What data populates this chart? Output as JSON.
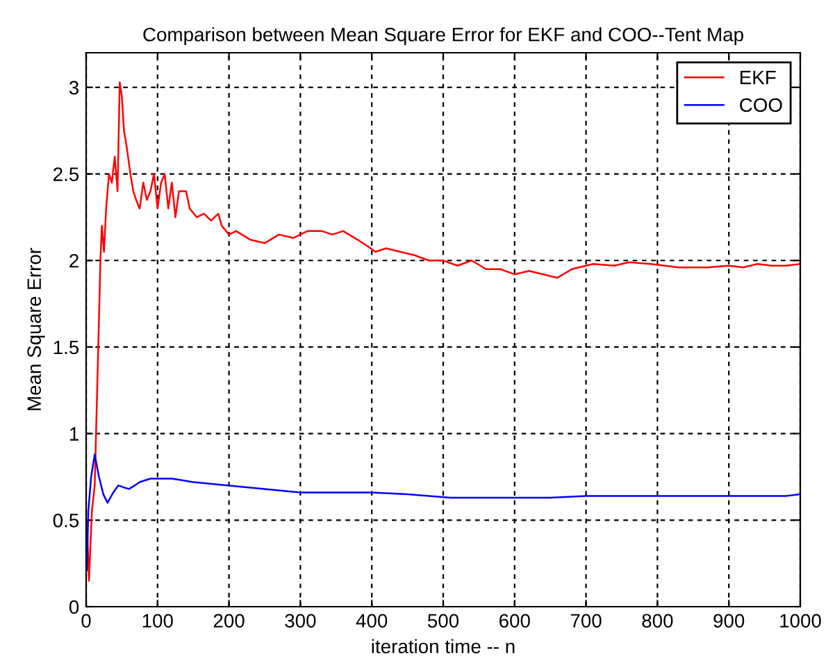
{
  "chart_data": {
    "type": "line",
    "title": "Comparison between Mean Square Error for EKF and COO--Tent Map",
    "xlabel": "iteration time -- n",
    "ylabel": "Mean Square Error",
    "xlim": [
      0,
      1000
    ],
    "ylim": [
      0,
      3.2
    ],
    "xticks": [
      0,
      100,
      200,
      300,
      400,
      500,
      600,
      700,
      800,
      900,
      1000
    ],
    "yticks": [
      0,
      0.5,
      1,
      1.5,
      2,
      2.5,
      3
    ],
    "grid": true,
    "legend": "top right",
    "line_style": "solid",
    "marker": "none",
    "series": [
      {
        "name": "EKF",
        "color": "#ff0000",
        "x": [
          1,
          4,
          8,
          12,
          17,
          20,
          22,
          25,
          28,
          32,
          36,
          40,
          44,
          47,
          50,
          53,
          57,
          62,
          66,
          70,
          75,
          80,
          85,
          90,
          95,
          100,
          105,
          110,
          115,
          120,
          125,
          130,
          140,
          145,
          155,
          165,
          175,
          185,
          190,
          200,
          210,
          230,
          250,
          270,
          290,
          310,
          330,
          345,
          360,
          380,
          395,
          405,
          420,
          440,
          460,
          480,
          500,
          520,
          540,
          560,
          580,
          600,
          620,
          640,
          660,
          680,
          700,
          710,
          740,
          760,
          790,
          810,
          830,
          850,
          870,
          900,
          920,
          940,
          960,
          980,
          1000
        ],
        "values": [
          0.5,
          0.15,
          0.55,
          0.7,
          1.5,
          2.0,
          2.2,
          2.05,
          2.3,
          2.5,
          2.45,
          2.6,
          2.4,
          3.03,
          2.95,
          2.75,
          2.65,
          2.5,
          2.4,
          2.35,
          2.3,
          2.45,
          2.35,
          2.4,
          2.5,
          2.3,
          2.45,
          2.5,
          2.3,
          2.45,
          2.25,
          2.4,
          2.4,
          2.3,
          2.25,
          2.27,
          2.23,
          2.27,
          2.2,
          2.15,
          2.17,
          2.12,
          2.1,
          2.15,
          2.13,
          2.17,
          2.17,
          2.15,
          2.17,
          2.12,
          2.08,
          2.05,
          2.07,
          2.05,
          2.03,
          2.0,
          2.0,
          1.97,
          2.0,
          1.95,
          1.95,
          1.92,
          1.94,
          1.92,
          1.9,
          1.95,
          1.97,
          1.98,
          1.97,
          1.99,
          1.98,
          1.97,
          1.96,
          1.96,
          1.96,
          1.97,
          1.96,
          1.98,
          1.97,
          1.97,
          1.98
        ]
      },
      {
        "name": "COO",
        "color": "#0000ff",
        "x": [
          1,
          3,
          7,
          12,
          18,
          24,
          30,
          38,
          45,
          52,
          60,
          68,
          75,
          90,
          120,
          150,
          200,
          250,
          300,
          400,
          450,
          510,
          650,
          700,
          980,
          1000
        ],
        "values": [
          0.21,
          0.55,
          0.75,
          0.88,
          0.75,
          0.65,
          0.6,
          0.66,
          0.7,
          0.69,
          0.68,
          0.7,
          0.72,
          0.74,
          0.74,
          0.72,
          0.7,
          0.68,
          0.66,
          0.66,
          0.65,
          0.63,
          0.63,
          0.64,
          0.64,
          0.65
        ]
      }
    ]
  }
}
